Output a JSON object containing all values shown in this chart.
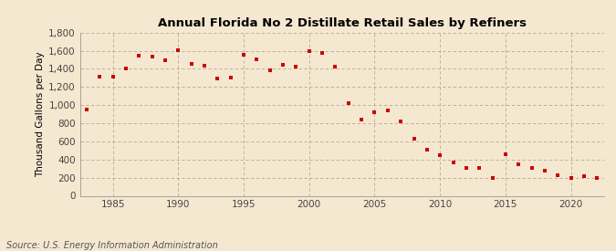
{
  "title": "Annual Florida No 2 Distillate Retail Sales by Refiners",
  "ylabel": "Thousand Gallons per Day",
  "source": "Source: U.S. Energy Information Administration",
  "background_color": "#f5e8d0",
  "plot_background_color": "#f5e8d0",
  "marker_color": "#cc0000",
  "marker": "s",
  "marker_size": 3.5,
  "xlim": [
    1982.5,
    2022.5
  ],
  "ylim": [
    0,
    1800
  ],
  "yticks": [
    0,
    200,
    400,
    600,
    800,
    1000,
    1200,
    1400,
    1600,
    1800
  ],
  "ytick_labels": [
    "0",
    "200",
    "400",
    "600",
    "800",
    "1,000",
    "1,200",
    "1,400",
    "1,600",
    "1,800"
  ],
  "xticks": [
    1985,
    1990,
    1995,
    2000,
    2005,
    2010,
    2015,
    2020
  ],
  "years": [
    1983,
    1984,
    1985,
    1986,
    1987,
    1988,
    1989,
    1990,
    1991,
    1992,
    1993,
    1994,
    1995,
    1996,
    1997,
    1998,
    1999,
    2000,
    2001,
    2002,
    2003,
    2004,
    2005,
    2006,
    2007,
    2008,
    2009,
    2010,
    2011,
    2012,
    2013,
    2014,
    2015,
    2016,
    2017,
    2018,
    2019,
    2020,
    2021,
    2022
  ],
  "values": [
    950,
    1310,
    1310,
    1400,
    1550,
    1540,
    1500,
    1610,
    1460,
    1440,
    1290,
    1300,
    1555,
    1510,
    1385,
    1450,
    1420,
    1600,
    1580,
    1420,
    1020,
    840,
    920,
    940,
    820,
    630,
    510,
    450,
    370,
    310,
    310,
    200,
    460,
    350,
    310,
    280,
    230,
    200,
    220,
    200
  ]
}
